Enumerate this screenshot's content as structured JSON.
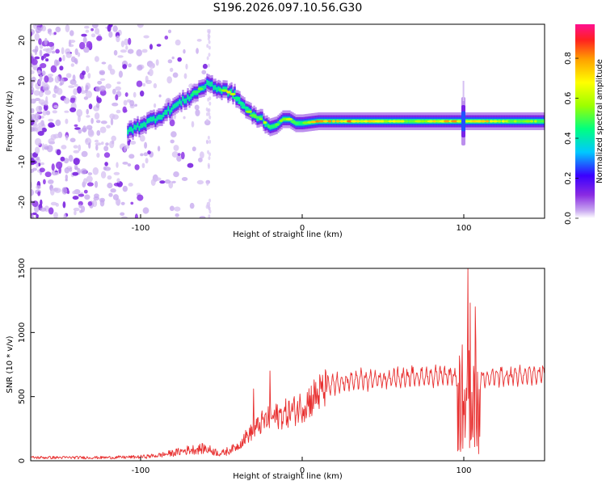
{
  "title": "S196.2026.097.10.56.G30",
  "chart_data": [
    {
      "type": "heatmap",
      "name": "spectrogram",
      "xlabel": "Height of straight line (km)",
      "ylabel": "Frequency (Hz)",
      "xlim": [
        -168,
        150
      ],
      "ylim": [
        -24,
        24
      ],
      "xticks": [
        -100,
        0,
        100
      ],
      "yticks": [
        -20,
        -10,
        0,
        10,
        20
      ],
      "colorbar": {
        "label": "Normalized spectral amplitude",
        "range": [
          0,
          0.97
        ],
        "ticks": [
          0.0,
          0.2,
          0.4,
          0.6,
          0.8
        ],
        "tick_labels": [
          "0.0",
          "0.2",
          "0.4",
          "0.6",
          "0.8"
        ],
        "colormap": [
          "#ffffff",
          "#c8a8f0",
          "#8a2be2",
          "#3a00ff",
          "#00c8ff",
          "#00ff80",
          "#9cff00",
          "#ffff00",
          "#ffa000",
          "#ff2020",
          "#ff1090"
        ]
      },
      "ridge": {
        "x": [
          -108,
          -100,
          -92,
          -85,
          -78,
          -70,
          -63,
          -57,
          -53,
          -47,
          -42,
          -37,
          -31,
          -25,
          -20,
          -16,
          -12,
          -8,
          -4,
          0,
          10,
          30,
          50,
          70,
          85,
          92,
          96,
          100,
          110,
          130,
          150
        ],
        "y": [
          -2.5,
          -1.0,
          0.5,
          2.0,
          4.0,
          6.0,
          8.0,
          9.5,
          8.0,
          7.5,
          6.5,
          4.0,
          1.5,
          0.5,
          -1.5,
          -1.0,
          0.5,
          0.5,
          -0.5,
          -0.5,
          0.0,
          0.0,
          0.0,
          0.0,
          0.0,
          0.0,
          0.0,
          0.0,
          0.0,
          0.0,
          0.0
        ],
        "amplitude": [
          0.35,
          0.4,
          0.45,
          0.45,
          0.5,
          0.55,
          0.55,
          0.45,
          0.5,
          0.75,
          0.6,
          0.55,
          0.6,
          0.65,
          0.6,
          0.55,
          0.6,
          0.65,
          0.55,
          0.6,
          0.8,
          0.8,
          0.7,
          0.65,
          0.75,
          0.8,
          0.85,
          0.6,
          0.8,
          0.65,
          0.6
        ]
      }
    },
    {
      "type": "line",
      "name": "snr",
      "xlabel": "Height of straight line (km)",
      "ylabel": "SNR (10 * v/v)",
      "xlim": [
        -168,
        150
      ],
      "ylim": [
        0,
        1500
      ],
      "xticks": [
        -100,
        0,
        100
      ],
      "yticks": [
        0,
        500,
        1000,
        1500
      ],
      "color": "#e83030",
      "envelope": {
        "x": [
          -168,
          -120,
          -100,
          -90,
          -80,
          -70,
          -60,
          -50,
          -40,
          -35,
          -30,
          -25,
          -20,
          -15,
          -10,
          -5,
          0,
          10,
          20,
          30,
          40,
          60,
          80,
          90,
          95,
          100,
          105,
          110,
          120,
          135,
          150
        ],
        "y": [
          25,
          25,
          30,
          40,
          60,
          85,
          95,
          55,
          110,
          180,
          230,
          290,
          320,
          340,
          360,
          380,
          420,
          510,
          560,
          590,
          600,
          620,
          630,
          630,
          630,
          560,
          600,
          620,
          630,
          630,
          650
        ]
      },
      "spikes": [
        {
          "x": -20,
          "y": 700
        },
        {
          "x": -30,
          "y": 560
        },
        {
          "x": 102.5,
          "y": 1500
        },
        {
          "x": 104,
          "y": 1230
        },
        {
          "x": 107,
          "y": 1200
        }
      ]
    }
  ]
}
